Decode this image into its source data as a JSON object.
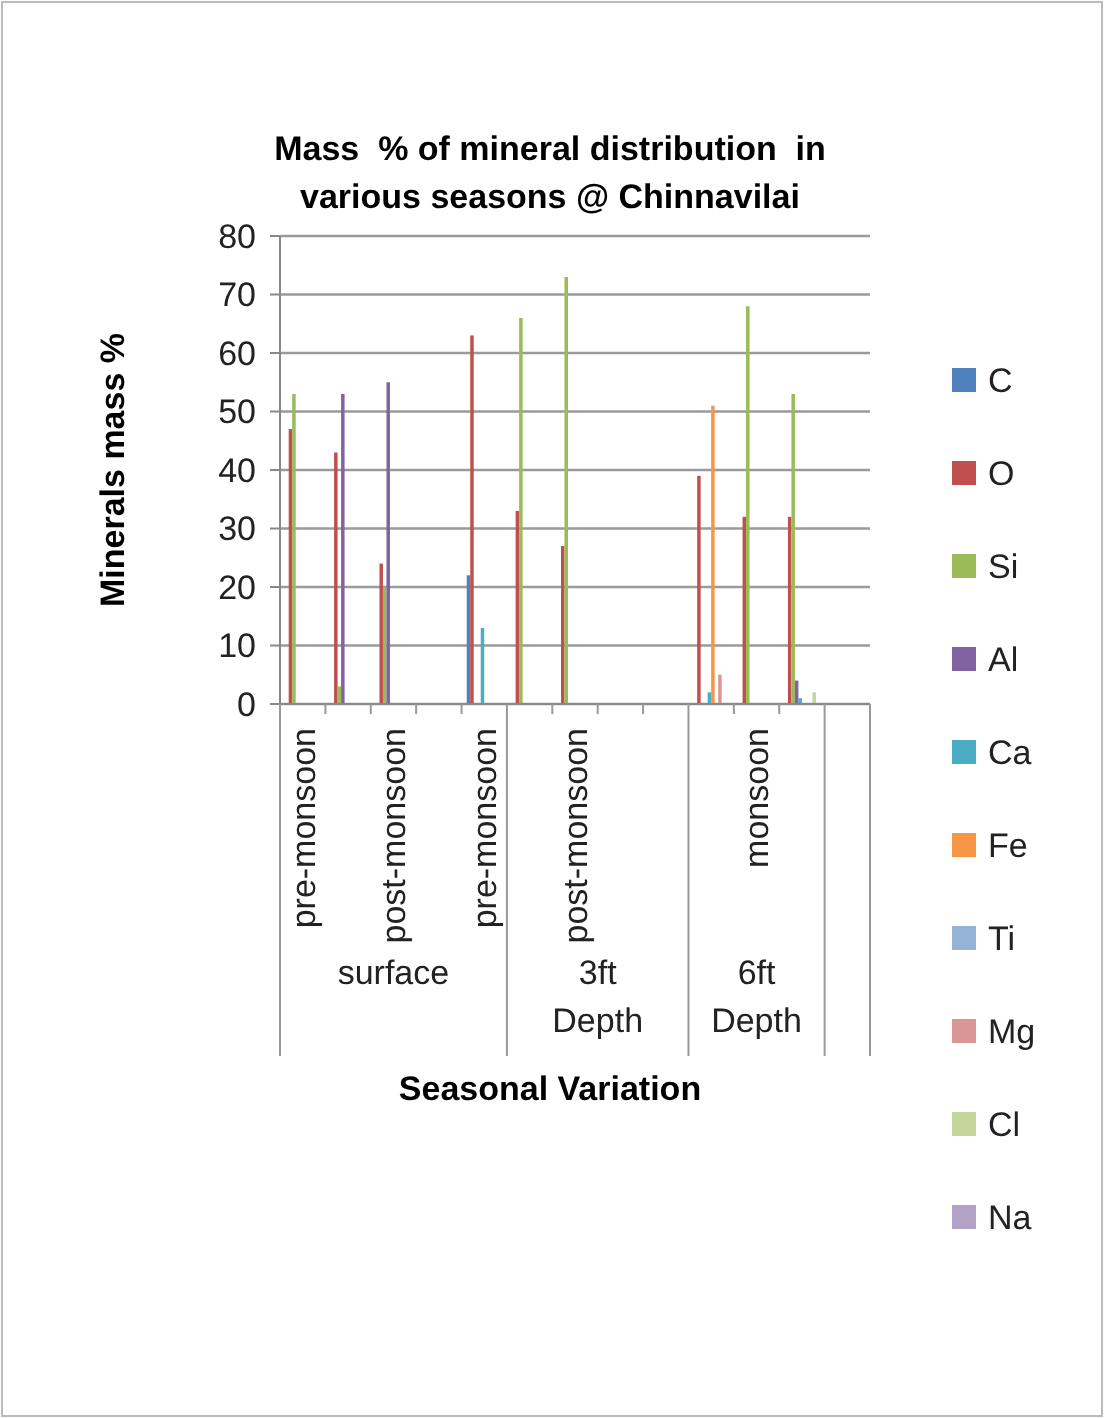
{
  "chart_data": {
    "type": "bar",
    "title": "Mass  % of mineral distribution  in various seasons @ Chinnavilai",
    "xlabel": "Seasonal Variation",
    "ylabel": "Minerals mass %",
    "categories": [
      "pre-monsoon",
      null,
      "post-monsoon",
      null,
      "pre-monsoon",
      null,
      "post-monsoon",
      null,
      null,
      null,
      "monsoon",
      null,
      null
    ],
    "annotations": [
      "surface",
      "3ft Depth",
      "6ft Depth"
    ],
    "series": [
      {
        "name": "C",
        "color": "#4f81bd",
        "values": [
          null,
          null,
          null,
          null,
          22,
          null,
          null,
          null,
          null,
          null,
          null,
          null,
          null
        ]
      },
      {
        "name": "O",
        "color": "#c0504d",
        "values": [
          47,
          43,
          24,
          null,
          63,
          33,
          27,
          null,
          null,
          39,
          32,
          32,
          null
        ]
      },
      {
        "name": "Si",
        "color": "#9bbb59",
        "values": [
          53,
          3,
          20,
          null,
          null,
          66,
          73,
          null,
          null,
          null,
          68,
          53,
          null
        ]
      },
      {
        "name": "Al",
        "color": "#8064a2",
        "values": [
          null,
          53,
          55,
          null,
          null,
          null,
          null,
          null,
          null,
          null,
          null,
          4,
          null
        ]
      },
      {
        "name": "Ca",
        "color": "#4bacc6",
        "values": [
          null,
          null,
          null,
          null,
          13,
          null,
          null,
          null,
          null,
          2,
          null,
          1,
          null
        ]
      },
      {
        "name": "Fe",
        "color": "#f79646",
        "values": [
          null,
          null,
          null,
          null,
          null,
          null,
          null,
          null,
          null,
          51,
          null,
          null,
          null
        ]
      },
      {
        "name": "Ti",
        "color": "#95b3d7",
        "values": [
          null,
          null,
          null,
          null,
          null,
          null,
          null,
          null,
          null,
          null,
          null,
          null,
          null
        ]
      },
      {
        "name": "Mg",
        "color": "#d99694",
        "values": [
          null,
          null,
          null,
          null,
          null,
          null,
          null,
          null,
          null,
          5,
          null,
          null,
          null
        ]
      },
      {
        "name": "Cl",
        "color": "#c3d69b",
        "values": [
          null,
          null,
          null,
          null,
          null,
          null,
          null,
          null,
          null,
          null,
          null,
          2,
          null
        ]
      },
      {
        "name": "Na",
        "color": "#b3a2c7",
        "values": [
          null,
          null,
          null,
          null,
          null,
          null,
          null,
          null,
          null,
          null,
          null,
          null,
          null
        ]
      }
    ],
    "ylim": [
      0,
      80
    ],
    "yticks": [
      0,
      10,
      20,
      30,
      40,
      50,
      60,
      70,
      80
    ],
    "grid": "y",
    "legend": "right"
  }
}
